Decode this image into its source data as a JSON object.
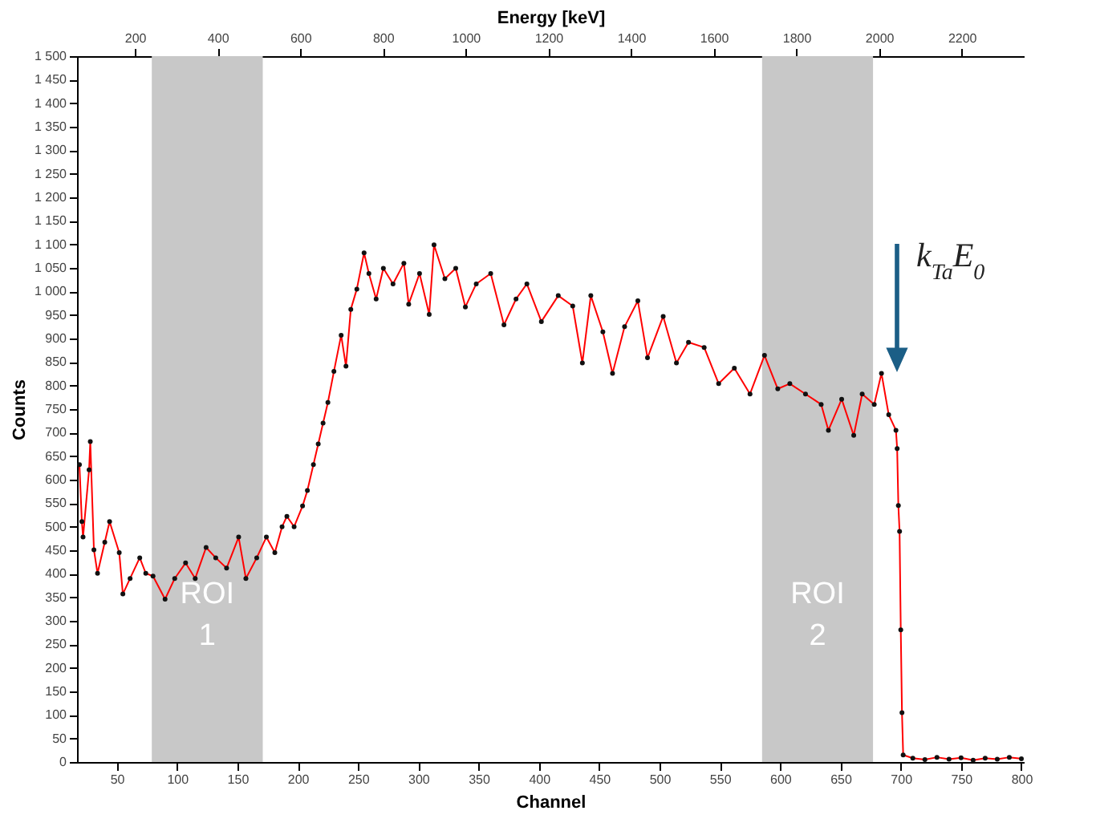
{
  "chart_data": {
    "type": "line",
    "xlabel": "Channel",
    "ylabel": "Counts",
    "x2label": "Energy [keV]",
    "x": [
      19,
      21,
      22,
      27,
      28,
      31,
      34,
      40,
      44,
      52,
      55,
      61,
      69,
      74,
      80,
      90,
      98,
      107,
      115,
      124,
      132,
      141,
      151,
      157,
      166,
      174,
      181,
      187,
      191,
      197,
      204,
      208,
      213,
      217,
      221,
      225,
      230,
      236,
      240,
      244,
      249,
      255,
      259,
      265,
      271,
      279,
      288,
      292,
      301,
      309,
      313,
      322,
      331,
      339,
      348,
      360,
      371,
      381,
      390,
      402,
      416,
      428,
      436,
      443,
      453,
      461,
      471,
      482,
      490,
      503,
      514,
      524,
      537,
      549,
      562,
      575,
      587,
      598,
      608,
      621,
      634,
      640,
      651,
      661,
      668,
      678,
      684,
      690,
      696,
      697,
      698,
      699,
      700,
      701,
      702,
      710,
      720,
      730,
      740,
      750,
      760,
      770,
      780,
      790,
      800
    ],
    "series": [
      {
        "color": "#ff0000",
        "values": [
          632,
          511,
          478,
          621,
          681,
          451,
          401,
          467,
          511,
          445,
          357,
          390,
          434,
          401,
          395,
          346,
          390,
          423,
          390,
          456,
          434,
          412,
          478,
          390,
          434,
          478,
          445,
          500,
          522,
          500,
          544,
          577,
          632,
          676,
          720,
          764,
          830,
          907,
          841,
          962,
          1005,
          1082,
          1038,
          984,
          1049,
          1016,
          1060,
          973,
          1038,
          951,
          1099,
          1027,
          1049,
          967,
          1016,
          1038,
          929,
          984,
          1016,
          936,
          991,
          969,
          848,
          991,
          914,
          826,
          925,
          980,
          859,
          947,
          848,
          892,
          881,
          804,
          837,
          782,
          864,
          793,
          804,
          782,
          760,
          705,
          771,
          694,
          782,
          760,
          826,
          738,
          705,
          666,
          545,
          490,
          281,
          105,
          15,
          8,
          5,
          10,
          6,
          9,
          4,
          8,
          6,
          10,
          7
        ]
      }
    ],
    "xlim": [
      17,
      802
    ],
    "xticks": [
      50,
      100,
      150,
      200,
      250,
      300,
      350,
      400,
      450,
      500,
      550,
      600,
      650,
      700,
      750,
      800
    ],
    "x2lim": [
      60,
      2350
    ],
    "x2ticks": [
      200,
      400,
      600,
      800,
      1000,
      1200,
      1400,
      1600,
      1800,
      2000,
      2200
    ],
    "ylim": [
      0,
      1500
    ],
    "yticks": [
      0,
      50,
      100,
      150,
      200,
      250,
      300,
      350,
      400,
      450,
      500,
      550,
      600,
      650,
      700,
      750,
      800,
      850,
      900,
      950,
      {
        "value": 1000,
        "label": "1 000"
      },
      {
        "value": 1050,
        "label": "1 050"
      },
      {
        "value": 1100,
        "label": "1 100"
      },
      {
        "value": 1150,
        "label": "1 150"
      },
      {
        "value": 1200,
        "label": "1 200"
      },
      {
        "value": 1250,
        "label": "1 250"
      },
      {
        "value": 1300,
        "label": "1 300"
      },
      {
        "value": 1350,
        "label": "1 350"
      },
      {
        "value": 1400,
        "label": "1 400"
      },
      {
        "value": 1450,
        "label": "1 450"
      },
      {
        "value": 1500,
        "label": "1 500"
      }
    ],
    "marker": "circle",
    "line_style": "solid",
    "bands": [
      {
        "axis": "x",
        "from": 79,
        "to": 171,
        "label": "ROI 1",
        "color": "#c8c8c8"
      },
      {
        "axis": "x",
        "from": 585,
        "to": 677,
        "label": "ROI 2",
        "color": "#c8c8c8"
      }
    ],
    "annotations": [
      "k$_{Ta}$E$_{0}$"
    ]
  }
}
